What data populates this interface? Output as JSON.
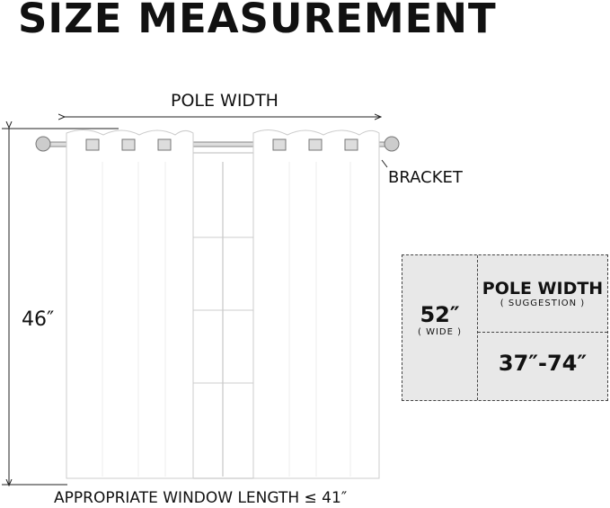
{
  "title": "SIZE MEASUREMENT",
  "labels": {
    "pole_width": "POLE WIDTH",
    "bracket": "BRACKET",
    "length": "46″",
    "window_length": "APPROPRIATE WINDOW LENGTH ≤ 41″"
  },
  "table": {
    "width": "52″",
    "width_note": "( WIDE )",
    "pole_header": "POLE WIDTH",
    "pole_note": "( SUGGESTION )",
    "pole_range": "37″-74″"
  },
  "colors": {
    "table_bg": "#e8e8e8",
    "text": "#111111"
  }
}
